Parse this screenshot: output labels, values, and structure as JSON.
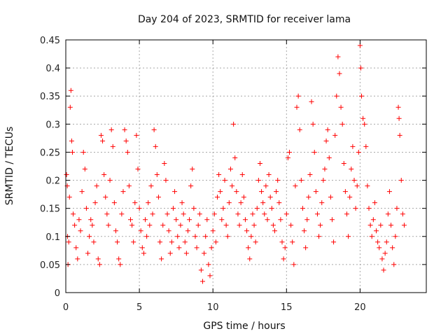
{
  "chart_data": {
    "type": "scatter",
    "title": "Day 204 of 2023, SRMTID for receiver lama",
    "xlabel": "GPS time / hours",
    "ylabel": "SRMTID / TECUs",
    "xlim": [
      0,
      24.5
    ],
    "ylim": [
      0,
      0.45
    ],
    "x_ticks": [
      0,
      5,
      10,
      15,
      20
    ],
    "x_tick_labels": [
      "0",
      "5",
      "10",
      "15",
      "20"
    ],
    "y_ticks": [
      0,
      0.05,
      0.1,
      0.15,
      0.2,
      0.25,
      0.3,
      0.35,
      0.4,
      0.45
    ],
    "y_tick_labels": [
      "0",
      "0.05",
      "0.1",
      "0.15",
      "0.2",
      "0.25",
      "0.3",
      "0.35",
      "0.4",
      "0.45"
    ],
    "grid": true,
    "marker": "plus",
    "color": "#ff0000",
    "series": [
      {
        "name": "SRMTID",
        "points": [
          [
            0.05,
            0.21
          ],
          [
            0.1,
            0.19
          ],
          [
            0.12,
            0.1
          ],
          [
            0.15,
            0.05
          ],
          [
            0.2,
            0.09
          ],
          [
            0.25,
            0.17
          ],
          [
            0.3,
            0.33
          ],
          [
            0.35,
            0.36
          ],
          [
            0.4,
            0.27
          ],
          [
            0.45,
            0.25
          ],
          [
            0.5,
            0.14
          ],
          [
            0.6,
            0.12
          ],
          [
            0.7,
            0.08
          ],
          [
            0.8,
            0.06
          ],
          [
            0.9,
            0.13
          ],
          [
            1.0,
            0.11
          ],
          [
            1.1,
            0.18
          ],
          [
            1.2,
            0.25
          ],
          [
            1.3,
            0.22
          ],
          [
            1.4,
            0.15
          ],
          [
            1.5,
            0.07
          ],
          [
            1.6,
            0.1
          ],
          [
            1.7,
            0.13
          ],
          [
            1.8,
            0.12
          ],
          [
            1.9,
            0.09
          ],
          [
            2.0,
            0.16
          ],
          [
            2.1,
            0.19
          ],
          [
            2.2,
            0.06
          ],
          [
            2.3,
            0.05
          ],
          [
            2.4,
            0.28
          ],
          [
            2.5,
            0.27
          ],
          [
            2.6,
            0.21
          ],
          [
            2.7,
            0.17
          ],
          [
            2.8,
            0.14
          ],
          [
            2.9,
            0.12
          ],
          [
            3.0,
            0.2
          ],
          [
            3.1,
            0.29
          ],
          [
            3.2,
            0.26
          ],
          [
            3.3,
            0.16
          ],
          [
            3.4,
            0.11
          ],
          [
            3.5,
            0.09
          ],
          [
            3.6,
            0.06
          ],
          [
            3.7,
            0.05
          ],
          [
            3.8,
            0.14
          ],
          [
            3.9,
            0.18
          ],
          [
            4.0,
            0.29
          ],
          [
            4.1,
            0.27
          ],
          [
            4.2,
            0.25
          ],
          [
            4.3,
            0.19
          ],
          [
            4.4,
            0.13
          ],
          [
            4.5,
            0.12
          ],
          [
            4.6,
            0.09
          ],
          [
            4.7,
            0.16
          ],
          [
            4.8,
            0.28
          ],
          [
            4.9,
            0.22
          ],
          [
            5.0,
            0.15
          ],
          [
            5.1,
            0.11
          ],
          [
            5.2,
            0.08
          ],
          [
            5.3,
            0.07
          ],
          [
            5.4,
            0.13
          ],
          [
            5.5,
            0.1
          ],
          [
            5.6,
            0.16
          ],
          [
            5.7,
            0.12
          ],
          [
            5.8,
            0.19
          ],
          [
            5.9,
            0.14
          ],
          [
            6.0,
            0.29
          ],
          [
            6.1,
            0.26
          ],
          [
            6.2,
            0.21
          ],
          [
            6.3,
            0.17
          ],
          [
            6.4,
            0.09
          ],
          [
            6.5,
            0.06
          ],
          [
            6.6,
            0.12
          ],
          [
            6.7,
            0.23
          ],
          [
            6.8,
            0.2
          ],
          [
            6.9,
            0.14
          ],
          [
            7.0,
            0.11
          ],
          [
            7.1,
            0.07
          ],
          [
            7.2,
            0.09
          ],
          [
            7.3,
            0.15
          ],
          [
            7.4,
            0.18
          ],
          [
            7.5,
            0.13
          ],
          [
            7.6,
            0.1
          ],
          [
            7.7,
            0.08
          ],
          [
            7.8,
            0.12
          ],
          [
            7.9,
            0.16
          ],
          [
            8.0,
            0.14
          ],
          [
            8.1,
            0.09
          ],
          [
            8.2,
            0.07
          ],
          [
            8.3,
            0.11
          ],
          [
            8.4,
            0.13
          ],
          [
            8.5,
            0.19
          ],
          [
            8.6,
            0.22
          ],
          [
            8.7,
            0.15
          ],
          [
            8.8,
            0.1
          ],
          [
            8.9,
            0.08
          ],
          [
            9.0,
            0.12
          ],
          [
            9.1,
            0.14
          ],
          [
            9.2,
            0.04
          ],
          [
            9.3,
            0.02
          ],
          [
            9.4,
            0.07
          ],
          [
            9.5,
            0.1
          ],
          [
            9.6,
            0.13
          ],
          [
            9.7,
            0.05
          ],
          [
            9.8,
            0.03
          ],
          [
            9.9,
            0.08
          ],
          [
            10.0,
            0.11
          ],
          [
            10.1,
            0.14
          ],
          [
            10.2,
            0.09
          ],
          [
            10.3,
            0.17
          ],
          [
            10.4,
            0.21
          ],
          [
            10.5,
            0.18
          ],
          [
            10.6,
            0.13
          ],
          [
            10.7,
            0.15
          ],
          [
            10.8,
            0.2
          ],
          [
            10.9,
            0.12
          ],
          [
            11.0,
            0.1
          ],
          [
            11.1,
            0.16
          ],
          [
            11.2,
            0.22
          ],
          [
            11.3,
            0.19
          ],
          [
            11.4,
            0.3
          ],
          [
            11.5,
            0.24
          ],
          [
            11.6,
            0.18
          ],
          [
            11.7,
            0.14
          ],
          [
            11.8,
            0.12
          ],
          [
            11.9,
            0.16
          ],
          [
            12.0,
            0.21
          ],
          [
            12.1,
            0.17
          ],
          [
            12.2,
            0.13
          ],
          [
            12.3,
            0.11
          ],
          [
            12.4,
            0.08
          ],
          [
            12.5,
            0.06
          ],
          [
            12.6,
            0.1
          ],
          [
            12.7,
            0.14
          ],
          [
            12.8,
            0.12
          ],
          [
            12.9,
            0.09
          ],
          [
            13.0,
            0.15
          ],
          [
            13.1,
            0.2
          ],
          [
            13.2,
            0.23
          ],
          [
            13.3,
            0.18
          ],
          [
            13.4,
            0.16
          ],
          [
            13.5,
            0.14
          ],
          [
            13.6,
            0.19
          ],
          [
            13.7,
            0.13
          ],
          [
            13.8,
            0.21
          ],
          [
            13.9,
            0.17
          ],
          [
            14.0,
            0.15
          ],
          [
            14.1,
            0.12
          ],
          [
            14.2,
            0.11
          ],
          [
            14.3,
            0.18
          ],
          [
            14.4,
            0.2
          ],
          [
            14.5,
            0.16
          ],
          [
            14.6,
            0.13
          ],
          [
            14.7,
            0.09
          ],
          [
            14.8,
            0.06
          ],
          [
            14.9,
            0.08
          ],
          [
            15.0,
            0.14
          ],
          [
            15.1,
            0.24
          ],
          [
            15.2,
            0.25
          ],
          [
            15.3,
            0.12
          ],
          [
            15.4,
            0.09
          ],
          [
            15.5,
            0.05
          ],
          [
            15.6,
            0.19
          ],
          [
            15.7,
            0.33
          ],
          [
            15.8,
            0.35
          ],
          [
            15.9,
            0.29
          ],
          [
            16.0,
            0.2
          ],
          [
            16.1,
            0.15
          ],
          [
            16.2,
            0.11
          ],
          [
            16.3,
            0.08
          ],
          [
            16.4,
            0.13
          ],
          [
            16.5,
            0.17
          ],
          [
            16.6,
            0.21
          ],
          [
            16.7,
            0.34
          ],
          [
            16.8,
            0.3
          ],
          [
            16.9,
            0.25
          ],
          [
            17.0,
            0.18
          ],
          [
            17.1,
            0.14
          ],
          [
            17.2,
            0.1
          ],
          [
            17.3,
            0.12
          ],
          [
            17.4,
            0.16
          ],
          [
            17.5,
            0.2
          ],
          [
            17.6,
            0.22
          ],
          [
            17.7,
            0.27
          ],
          [
            17.8,
            0.29
          ],
          [
            17.9,
            0.24
          ],
          [
            18.0,
            0.17
          ],
          [
            18.1,
            0.13
          ],
          [
            18.2,
            0.09
          ],
          [
            18.3,
            0.28
          ],
          [
            18.4,
            0.35
          ],
          [
            18.5,
            0.42
          ],
          [
            18.6,
            0.39
          ],
          [
            18.7,
            0.33
          ],
          [
            18.8,
            0.3
          ],
          [
            18.9,
            0.23
          ],
          [
            19.0,
            0.18
          ],
          [
            19.1,
            0.14
          ],
          [
            19.2,
            0.1
          ],
          [
            19.3,
            0.17
          ],
          [
            19.4,
            0.22
          ],
          [
            19.5,
            0.26
          ],
          [
            19.6,
            0.2
          ],
          [
            19.7,
            0.15
          ],
          [
            19.8,
            0.19
          ],
          [
            19.9,
            0.25
          ],
          [
            20.0,
            0.44
          ],
          [
            20.05,
            0.4
          ],
          [
            20.1,
            0.35
          ],
          [
            20.2,
            0.31
          ],
          [
            20.3,
            0.3
          ],
          [
            20.4,
            0.26
          ],
          [
            20.5,
            0.19
          ],
          [
            20.6,
            0.15
          ],
          [
            20.7,
            0.12
          ],
          [
            20.8,
            0.1
          ],
          [
            20.9,
            0.13
          ],
          [
            21.0,
            0.16
          ],
          [
            21.1,
            0.11
          ],
          [
            21.2,
            0.09
          ],
          [
            21.3,
            0.08
          ],
          [
            21.4,
            0.12
          ],
          [
            21.5,
            0.06
          ],
          [
            21.6,
            0.04
          ],
          [
            21.7,
            0.07
          ],
          [
            21.8,
            0.09
          ],
          [
            21.9,
            0.14
          ],
          [
            22.0,
            0.18
          ],
          [
            22.1,
            0.12
          ],
          [
            22.2,
            0.08
          ],
          [
            22.3,
            0.05
          ],
          [
            22.4,
            0.1
          ],
          [
            22.5,
            0.15
          ],
          [
            22.6,
            0.33
          ],
          [
            22.65,
            0.31
          ],
          [
            22.7,
            0.28
          ],
          [
            22.8,
            0.2
          ],
          [
            22.9,
            0.14
          ],
          [
            23.0,
            0.12
          ]
        ]
      }
    ]
  }
}
